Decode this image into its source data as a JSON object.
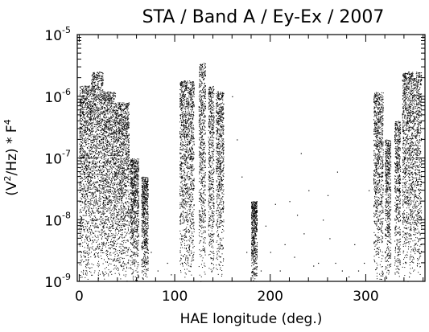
{
  "chart_data": {
    "type": "scatter",
    "title": "STA / Band A / Ey-Ex / 2007",
    "xlabel": "HAE longitude (deg.)",
    "ylabel": {
      "prefix": "(V",
      "sup1": "2",
      "mid": "/Hz) * F",
      "sup2": "4"
    },
    "x_scale": "linear",
    "y_scale": "log",
    "xlim": [
      -2,
      362
    ],
    "ylim": [
      1e-09,
      1e-05
    ],
    "x_ticks": [
      {
        "value": 0,
        "label": "0"
      },
      {
        "value": 100,
        "label": "100"
      },
      {
        "value": 200,
        "label": "200"
      },
      {
        "value": 300,
        "label": "300"
      }
    ],
    "y_ticks": [
      {
        "value": 1e-09,
        "base": "10",
        "exp": "-9"
      },
      {
        "value": 1e-08,
        "base": "10",
        "exp": "-8"
      },
      {
        "value": 1e-07,
        "base": "10",
        "exp": "-7"
      },
      {
        "value": 1e-06,
        "base": "10",
        "exp": "-6"
      },
      {
        "value": 1e-05,
        "base": "10",
        "exp": "-5"
      }
    ],
    "grid": false,
    "marker_color": "#000000",
    "dense_clusters": [
      {
        "x_range": [
          0,
          12
        ],
        "y_range": [
          1e-09,
          1.5e-06
        ]
      },
      {
        "x_range": [
          12,
          25
        ],
        "y_range": [
          1e-09,
          2.5e-06
        ]
      },
      {
        "x_range": [
          25,
          38
        ],
        "y_range": [
          1e-09,
          1.2e-06
        ]
      },
      {
        "x_range": [
          38,
          52
        ],
        "y_range": [
          1e-09,
          8e-07
        ]
      },
      {
        "x_range": [
          53,
          62
        ],
        "y_range": [
          1e-09,
          1e-07
        ]
      },
      {
        "x_range": [
          65,
          72
        ],
        "y_range": [
          1e-09,
          5e-08
        ]
      },
      {
        "x_range": [
          105,
          120
        ],
        "y_range": [
          1e-09,
          1.8e-06
        ]
      },
      {
        "x_range": [
          125,
          132
        ],
        "y_range": [
          1e-09,
          3.5e-06
        ]
      },
      {
        "x_range": [
          135,
          141
        ],
        "y_range": [
          1e-09,
          1.5e-06
        ]
      },
      {
        "x_range": [
          143,
          151
        ],
        "y_range": [
          1e-09,
          1.2e-06
        ]
      },
      {
        "x_range": [
          180,
          186
        ],
        "y_range": [
          1e-09,
          2e-08
        ]
      },
      {
        "x_range": [
          308,
          318
        ],
        "y_range": [
          1e-09,
          1.2e-06
        ]
      },
      {
        "x_range": [
          320,
          326
        ],
        "y_range": [
          1e-09,
          2e-07
        ]
      },
      {
        "x_range": [
          330,
          336
        ],
        "y_range": [
          1e-09,
          4e-07
        ]
      },
      {
        "x_range": [
          338,
          358
        ],
        "y_range": [
          1e-09,
          2.5e-06
        ]
      }
    ],
    "sparse_points": [
      [
        75,
        3e-09
      ],
      [
        82,
        1.5e-09
      ],
      [
        92,
        2e-09
      ],
      [
        96,
        1.3e-09
      ],
      [
        160,
        1e-06
      ],
      [
        165,
        2e-07
      ],
      [
        170,
        5e-08
      ],
      [
        175,
        3e-09
      ],
      [
        190,
        1.5e-09
      ],
      [
        195,
        8e-09
      ],
      [
        200,
        3e-09
      ],
      [
        210,
        1.5e-09
      ],
      [
        215,
        4e-09
      ],
      [
        225,
        2.5e-09
      ],
      [
        228,
        1.2e-08
      ],
      [
        232,
        1.2e-07
      ],
      [
        240,
        3e-08
      ],
      [
        245,
        1.8e-09
      ],
      [
        250,
        2e-09
      ],
      [
        255,
        1e-08
      ],
      [
        262,
        5e-09
      ],
      [
        268,
        2e-09
      ],
      [
        275,
        1.5e-09
      ],
      [
        282,
        1.2e-09
      ],
      [
        288,
        4e-09
      ],
      [
        292,
        1.5e-09
      ],
      [
        298,
        2e-09
      ],
      [
        303,
        3e-08
      ],
      [
        260,
        2.5e-08
      ],
      [
        185,
        5e-09
      ],
      [
        205,
        1.8e-08
      ],
      [
        235,
        6e-09
      ],
      [
        270,
        6e-08
      ],
      [
        220,
        2e-08
      ]
    ]
  }
}
